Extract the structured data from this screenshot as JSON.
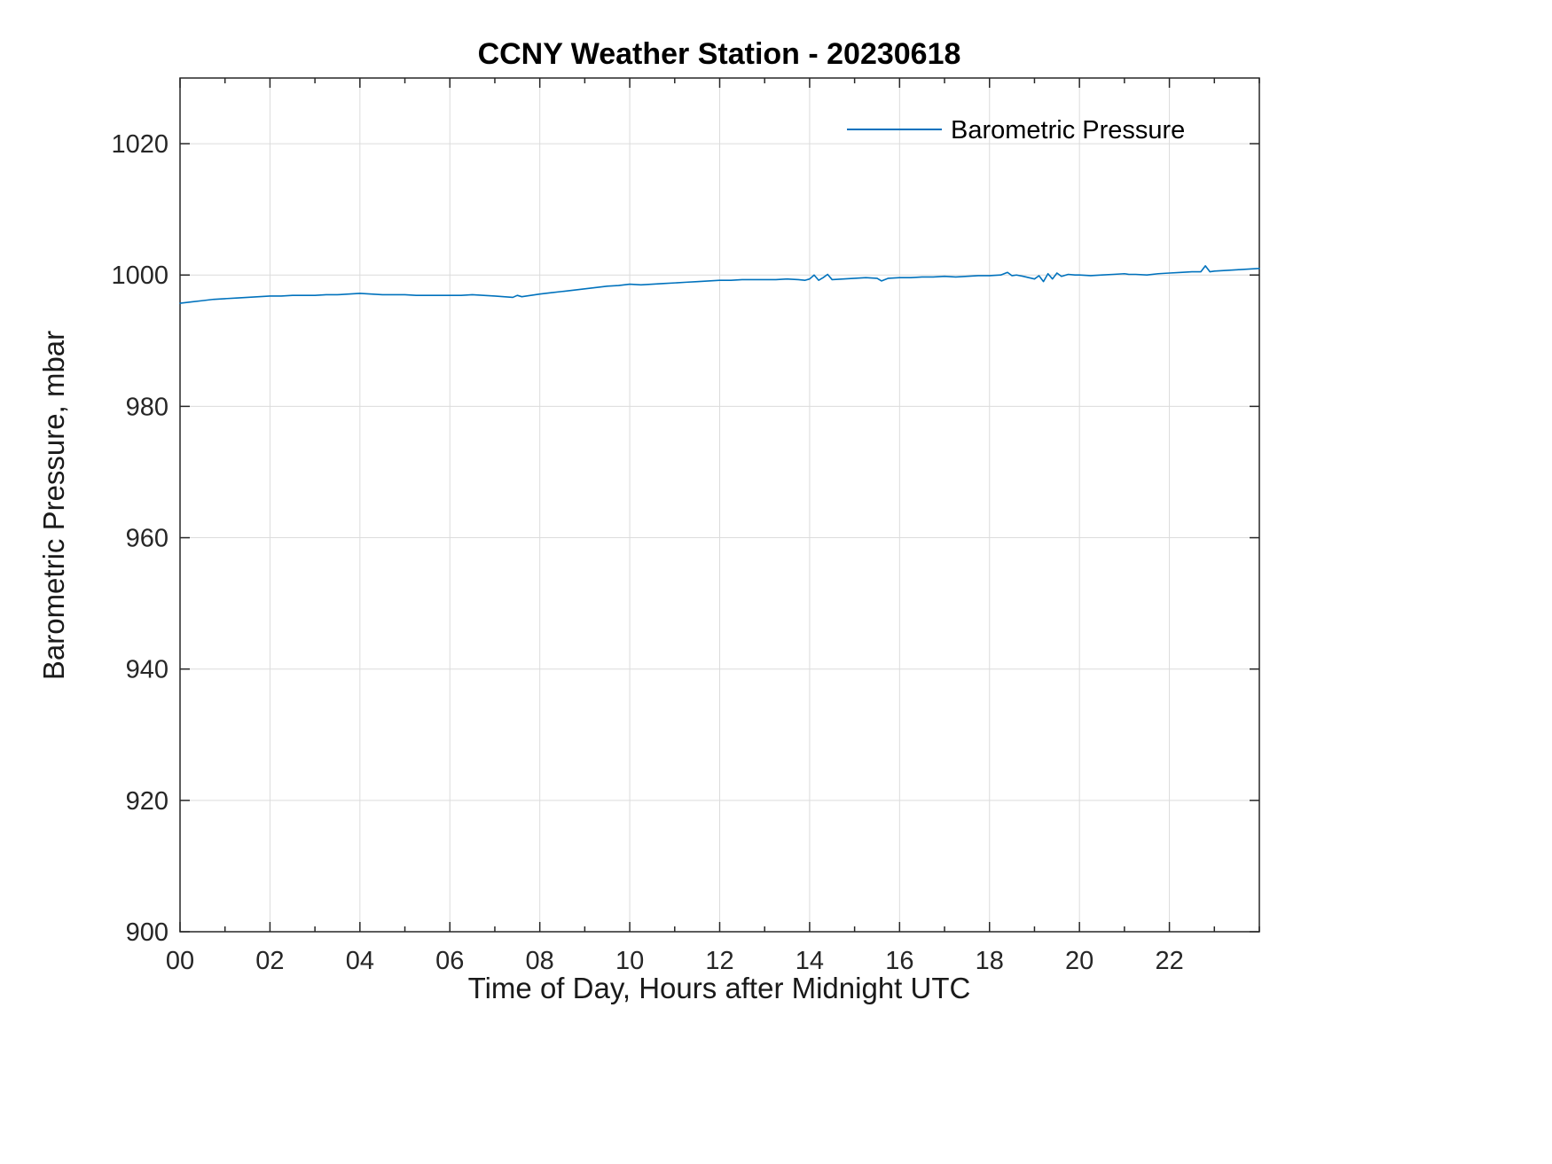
{
  "chart_data": {
    "type": "line",
    "title": "CCNY Weather Station - 20230618",
    "xlabel": "Time of Day, Hours after Midnight UTC",
    "ylabel": "Barometric Pressure, mbar",
    "legend": {
      "label": "Barometric Pressure",
      "position": "top-right",
      "box": false
    },
    "line_color": "#0072BD",
    "axis_color": "#262626",
    "grid_color": "#dcdcdc",
    "grid": true,
    "xlim": [
      0,
      24
    ],
    "ylim": [
      900,
      1030
    ],
    "x_ticks": {
      "values": [
        0,
        2,
        4,
        6,
        8,
        10,
        12,
        14,
        16,
        18,
        20,
        22
      ],
      "labels": [
        "00",
        "02",
        "04",
        "06",
        "08",
        "10",
        "12",
        "14",
        "16",
        "18",
        "20",
        "22"
      ]
    },
    "y_ticks": {
      "values": [
        900,
        920,
        940,
        960,
        980,
        1000,
        1020
      ],
      "labels": [
        "900",
        "920",
        "940",
        "960",
        "980",
        "1000",
        "1020"
      ]
    },
    "x_minor_step": 1,
    "series": [
      {
        "name": "Barometric Pressure",
        "x": [
          0,
          0.25,
          0.5,
          0.75,
          1,
          1.25,
          1.5,
          1.75,
          2,
          2.25,
          2.5,
          2.75,
          3,
          3.25,
          3.5,
          3.75,
          4,
          4.25,
          4.5,
          4.75,
          5,
          5.25,
          5.5,
          5.75,
          6,
          6.25,
          6.5,
          6.75,
          7,
          7.2,
          7.4,
          7.5,
          7.6,
          7.8,
          8,
          8.25,
          8.5,
          8.75,
          9,
          9.25,
          9.5,
          9.75,
          10,
          10.25,
          10.5,
          10.75,
          11,
          11.25,
          11.5,
          11.75,
          12,
          12.25,
          12.5,
          12.75,
          13,
          13.25,
          13.5,
          13.75,
          13.9,
          14,
          14.1,
          14.2,
          14.3,
          14.4,
          14.5,
          14.75,
          15,
          15.25,
          15.5,
          15.6,
          15.75,
          16,
          16.25,
          16.5,
          16.75,
          17,
          17.25,
          17.5,
          17.75,
          18,
          18.25,
          18.4,
          18.5,
          18.6,
          18.75,
          19,
          19.1,
          19.2,
          19.3,
          19.4,
          19.5,
          19.6,
          19.75,
          19.9,
          20,
          20.25,
          20.5,
          20.75,
          21,
          21.1,
          21.25,
          21.5,
          21.75,
          22,
          22.25,
          22.5,
          22.7,
          22.8,
          22.9,
          23,
          23.25,
          23.5,
          23.75,
          24
        ],
        "y": [
          995.7,
          995.9,
          996.1,
          996.3,
          996.4,
          996.5,
          996.6,
          996.7,
          996.8,
          996.8,
          996.9,
          996.9,
          996.9,
          997.0,
          997.0,
          997.1,
          997.2,
          997.1,
          997.0,
          997.0,
          997.0,
          996.9,
          996.9,
          996.9,
          996.9,
          996.9,
          997.0,
          996.9,
          996.8,
          996.7,
          996.6,
          996.9,
          996.7,
          996.9,
          997.1,
          997.3,
          997.5,
          997.7,
          997.9,
          998.1,
          998.3,
          998.4,
          998.6,
          998.5,
          998.6,
          998.7,
          998.8,
          998.9,
          999.0,
          999.1,
          999.2,
          999.2,
          999.3,
          999.3,
          999.3,
          999.3,
          999.4,
          999.3,
          999.2,
          999.4,
          1000.0,
          999.2,
          999.6,
          1000.1,
          999.3,
          999.4,
          999.5,
          999.6,
          999.5,
          999.1,
          999.5,
          999.6,
          999.6,
          999.7,
          999.7,
          999.8,
          999.7,
          999.8,
          999.9,
          999.9,
          1000.0,
          1000.4,
          999.9,
          1000.0,
          999.8,
          999.4,
          999.9,
          999.0,
          1000.2,
          999.4,
          1000.3,
          999.8,
          1000.1,
          1000.0,
          1000.0,
          999.9,
          1000.0,
          1000.1,
          1000.2,
          1000.1,
          1000.1,
          1000.0,
          1000.2,
          1000.3,
          1000.4,
          1000.5,
          1000.5,
          1001.4,
          1000.5,
          1000.6,
          1000.7,
          1000.8,
          1000.9,
          1001.0
        ]
      }
    ]
  }
}
